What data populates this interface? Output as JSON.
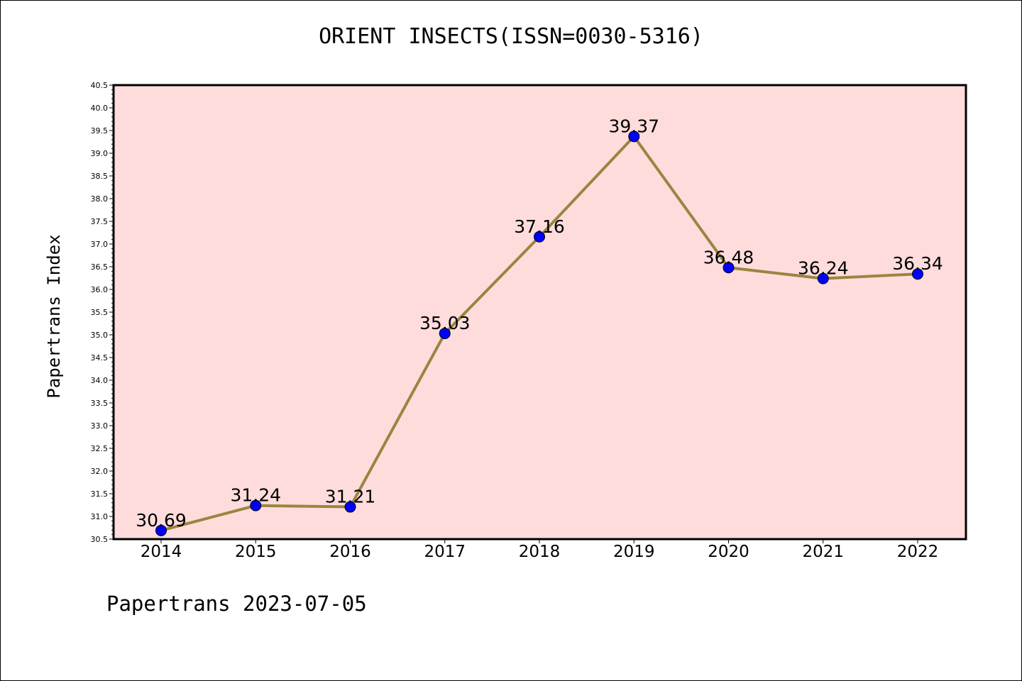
{
  "chart_data": {
    "type": "line",
    "title": "ORIENT INSECTS(ISSN=0030-5316)",
    "ylabel": "Papertrans Index",
    "xlabel": "",
    "categories": [
      "2014",
      "2015",
      "2016",
      "2017",
      "2018",
      "2019",
      "2020",
      "2021",
      "2022"
    ],
    "values": [
      30.69,
      31.24,
      31.21,
      35.03,
      37.16,
      39.37,
      36.48,
      36.24,
      36.34
    ],
    "data_labels": [
      "30.69",
      "31.24",
      "31.21",
      "35.03",
      "37.16",
      "39.37",
      "36.48",
      "36.24",
      "36.34"
    ],
    "ylim": [
      30.5,
      40.5
    ],
    "y_major_step": 0.5,
    "grid": false,
    "legend": "none",
    "colors": {
      "plot_background": "#ffdcdc",
      "line": "#9a8540",
      "marker": "#0000ff"
    }
  },
  "footer": "Papertrans 2023-07-05"
}
